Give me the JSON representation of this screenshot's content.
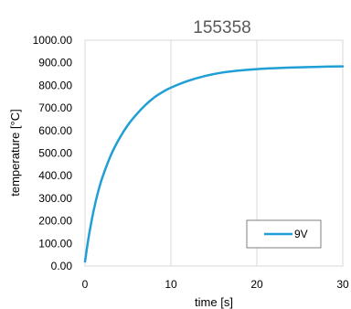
{
  "chart_data": {
    "type": "line",
    "title": "155358",
    "xlabel": "time [s]",
    "ylabel": "temperature [°C]",
    "xlim": [
      0,
      30
    ],
    "ylim": [
      0,
      1000
    ],
    "x_ticks": [
      "0",
      "10",
      "20",
      "30"
    ],
    "y_ticks": [
      "0.00",
      "100.00",
      "200.00",
      "300.00",
      "400.00",
      "500.00",
      "600.00",
      "700.00",
      "800.00",
      "900.00",
      "1000.00"
    ],
    "grid": "vertical",
    "legend": {
      "position": "bottom-right"
    },
    "series": [
      {
        "name": "9V",
        "color": "#1f9fd6",
        "x": [
          0,
          0.25,
          0.5,
          1,
          1.5,
          2,
          3,
          4,
          5,
          6,
          7,
          8,
          9,
          10,
          12,
          14,
          16,
          18,
          20,
          22,
          24,
          26,
          28,
          30
        ],
        "y": [
          20,
          85,
          145,
          245,
          325,
          390,
          490,
          565,
          625,
          672,
          712,
          745,
          770,
          790,
          820,
          842,
          857,
          866,
          872,
          876,
          879,
          881,
          883,
          884
        ]
      }
    ]
  }
}
